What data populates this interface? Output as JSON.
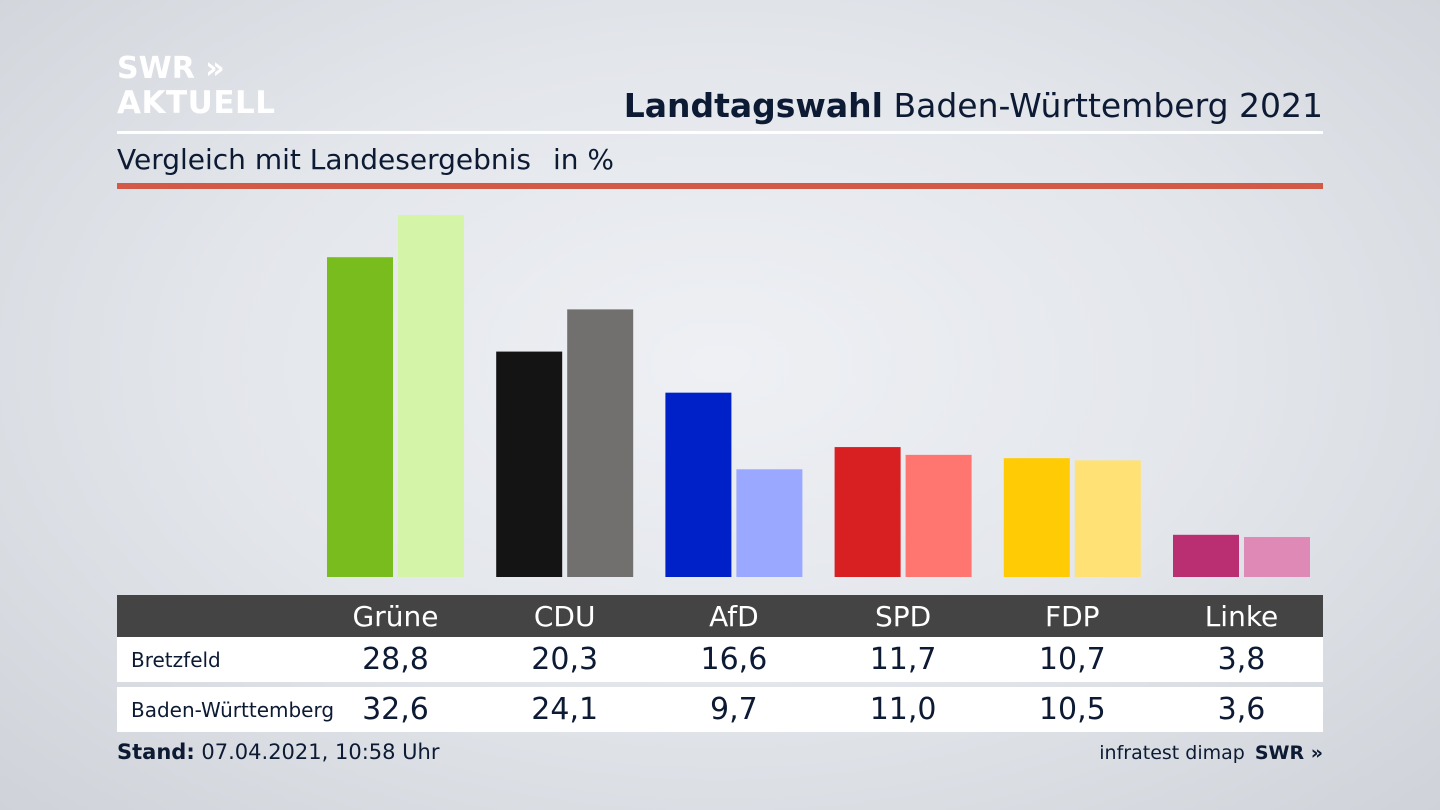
{
  "header": {
    "logo_line1": "SWR »",
    "logo_line2": "AKTUELL",
    "title_bold": "Landtagswahl",
    "title_rest": " Baden-Württemberg 2021",
    "subtitle": "Vergleich mit Landesergebnis",
    "unit": "in %"
  },
  "chart_data": {
    "type": "bar",
    "title": "Landtagswahl Baden-Württemberg 2021",
    "subtitle": "Vergleich mit Landesergebnis",
    "ylabel": "in %",
    "ylim": [
      0,
      32.6
    ],
    "categories": [
      "Grüne",
      "CDU",
      "AfD",
      "SPD",
      "FDP",
      "Linke"
    ],
    "series": [
      {
        "name": "Bretzfeld",
        "values": [
          28.8,
          20.3,
          16.6,
          11.7,
          10.7,
          3.8
        ],
        "display": [
          "28,8",
          "20,3",
          "16,6",
          "11,7",
          "10,7",
          "3,8"
        ],
        "colors": [
          "#78bd1d",
          "#141414",
          "#0020c8",
          "#d81f22",
          "#ffcb05",
          "#b92f72"
        ]
      },
      {
        "name": "Baden-Württemberg",
        "values": [
          32.6,
          24.1,
          9.7,
          11.0,
          10.5,
          3.6
        ],
        "display": [
          "32,6",
          "24,1",
          "9,7",
          "11,0",
          "10,5",
          "3,6"
        ],
        "colors": [
          "#d4f5a8",
          "#72706f",
          "#9aa8ff",
          "#ff7570",
          "#ffe176",
          "#df89b7"
        ]
      }
    ]
  },
  "footer": {
    "stand_label": "Stand:",
    "stand_value": " 07.04.2021, 10:58 Uhr",
    "source": "infratest dimap",
    "brand": "SWR »"
  }
}
